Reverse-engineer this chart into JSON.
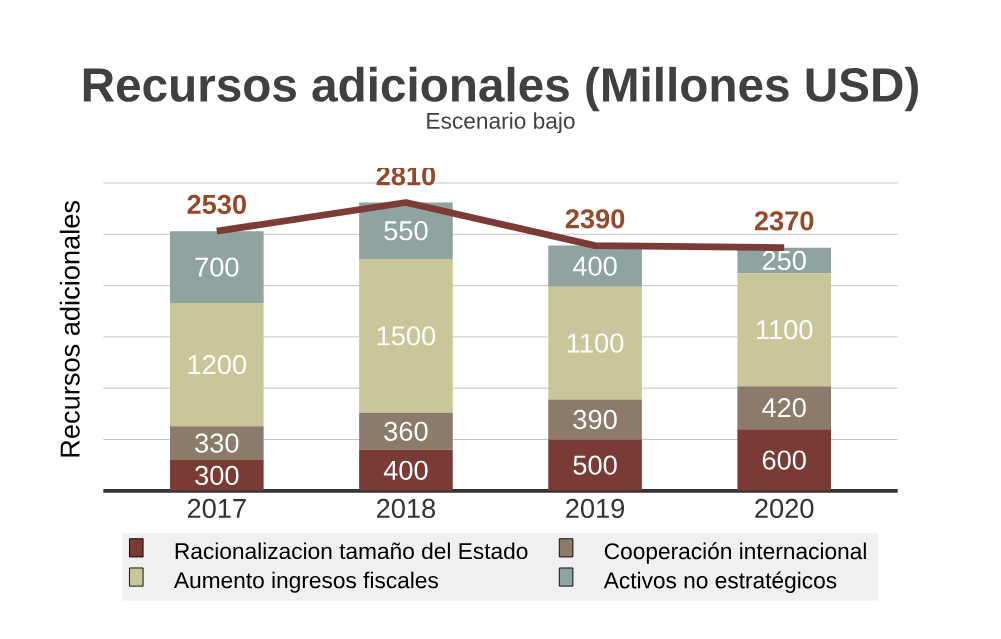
{
  "chart_data": {
    "type": "bar",
    "title": "Recursos adicionales (Millones USD)",
    "subtitle": "Escenario bajo",
    "ylabel": "Recursos adicionales",
    "categories": [
      "2017",
      "2018",
      "2019",
      "2020"
    ],
    "stacked": true,
    "series": [
      {
        "name": "Racionalizacion tamaño del Estado",
        "color": "#7a3b35",
        "values": [
          300,
          400,
          500,
          600
        ]
      },
      {
        "name": "Cooperación internacional",
        "color": "#8c7b6a",
        "values": [
          330,
          360,
          390,
          420
        ]
      },
      {
        "name": "Aumento ingresos fiscales",
        "color": "#c9c79a",
        "values": [
          1200,
          1500,
          1100,
          1100
        ]
      },
      {
        "name": "Activos no estratégicos",
        "color": "#8fa3a0",
        "values": [
          700,
          550,
          400,
          250
        ]
      },
      {
        "type": "line",
        "color": "#7b3b36",
        "values": [
          2530,
          2810,
          2390,
          2370
        ]
      }
    ],
    "tick_labels": "x",
    "grid": "y",
    "legend": "bottom",
    "data_labels": true
  }
}
